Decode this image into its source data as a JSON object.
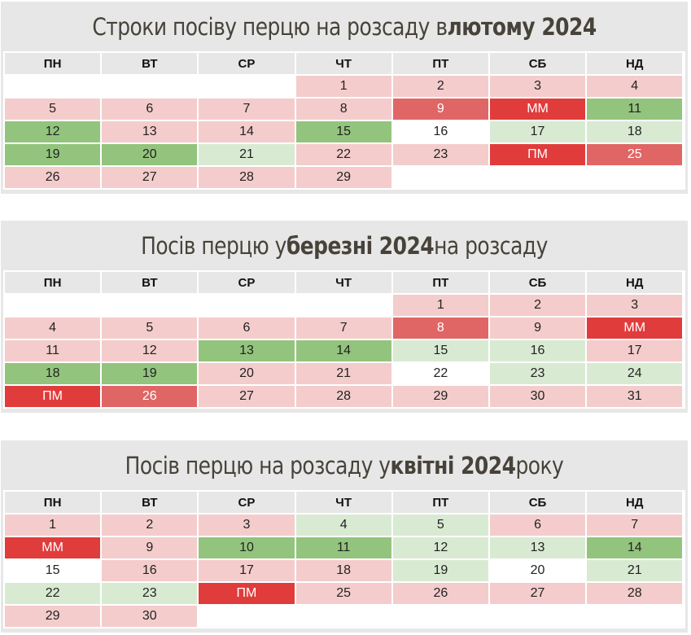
{
  "legend_colors": {
    "pink": "#f4cccc",
    "red": "#e06666",
    "strong": "#e03c3c",
    "green": "#93c47d",
    "lgreen": "#d9ead3",
    "white": "#ffffff"
  },
  "weekdays": [
    "ПН",
    "ВТ",
    "СР",
    "ЧТ",
    "ПТ",
    "СБ",
    "НД"
  ],
  "calendars": [
    {
      "title_parts": [
        {
          "text": "Строки посіву перцю на розсаду в ",
          "bold": false
        },
        {
          "text": "лютому 2024",
          "bold": true
        }
      ],
      "cells": [
        {
          "label": "",
          "type": "empty"
        },
        {
          "label": "",
          "type": "empty"
        },
        {
          "label": "",
          "type": "empty"
        },
        {
          "label": "1",
          "type": "pink"
        },
        {
          "label": "2",
          "type": "pink"
        },
        {
          "label": "3",
          "type": "pink"
        },
        {
          "label": "4",
          "type": "pink"
        },
        {
          "label": "5",
          "type": "pink"
        },
        {
          "label": "6",
          "type": "pink"
        },
        {
          "label": "7",
          "type": "pink"
        },
        {
          "label": "8",
          "type": "pink"
        },
        {
          "label": "9",
          "type": "red"
        },
        {
          "label": "ММ",
          "type": "strong"
        },
        {
          "label": "11",
          "type": "green"
        },
        {
          "label": "12",
          "type": "green"
        },
        {
          "label": "13",
          "type": "pink"
        },
        {
          "label": "14",
          "type": "pink"
        },
        {
          "label": "15",
          "type": "green"
        },
        {
          "label": "16",
          "type": "white"
        },
        {
          "label": "17",
          "type": "lgreen"
        },
        {
          "label": "18",
          "type": "lgreen"
        },
        {
          "label": "19",
          "type": "green"
        },
        {
          "label": "20",
          "type": "green"
        },
        {
          "label": "21",
          "type": "lgreen"
        },
        {
          "label": "22",
          "type": "pink"
        },
        {
          "label": "23",
          "type": "pink"
        },
        {
          "label": "ПМ",
          "type": "strong"
        },
        {
          "label": "25",
          "type": "red"
        },
        {
          "label": "26",
          "type": "pink"
        },
        {
          "label": "27",
          "type": "pink"
        },
        {
          "label": "28",
          "type": "pink"
        },
        {
          "label": "29",
          "type": "pink"
        },
        {
          "label": "",
          "type": "empty"
        },
        {
          "label": "",
          "type": "empty"
        },
        {
          "label": "",
          "type": "empty"
        }
      ]
    },
    {
      "title_parts": [
        {
          "text": "Посів перцю у ",
          "bold": false
        },
        {
          "text": "березні 2024",
          "bold": true
        },
        {
          "text": " на розсаду",
          "bold": false
        }
      ],
      "cells": [
        {
          "label": "",
          "type": "empty"
        },
        {
          "label": "",
          "type": "empty"
        },
        {
          "label": "",
          "type": "empty"
        },
        {
          "label": "",
          "type": "empty"
        },
        {
          "label": "1",
          "type": "pink"
        },
        {
          "label": "2",
          "type": "pink"
        },
        {
          "label": "3",
          "type": "pink"
        },
        {
          "label": "4",
          "type": "pink"
        },
        {
          "label": "5",
          "type": "pink"
        },
        {
          "label": "6",
          "type": "pink"
        },
        {
          "label": "7",
          "type": "pink"
        },
        {
          "label": "8",
          "type": "red"
        },
        {
          "label": "9",
          "type": "pink"
        },
        {
          "label": "ММ",
          "type": "strong"
        },
        {
          "label": "11",
          "type": "pink"
        },
        {
          "label": "12",
          "type": "pink"
        },
        {
          "label": "13",
          "type": "green"
        },
        {
          "label": "14",
          "type": "green"
        },
        {
          "label": "15",
          "type": "lgreen"
        },
        {
          "label": "16",
          "type": "lgreen"
        },
        {
          "label": "17",
          "type": "pink"
        },
        {
          "label": "18",
          "type": "green"
        },
        {
          "label": "19",
          "type": "green"
        },
        {
          "label": "20",
          "type": "pink"
        },
        {
          "label": "21",
          "type": "pink"
        },
        {
          "label": "22",
          "type": "white"
        },
        {
          "label": "23",
          "type": "lgreen"
        },
        {
          "label": "24",
          "type": "lgreen"
        },
        {
          "label": "ПМ",
          "type": "strong"
        },
        {
          "label": "26",
          "type": "red"
        },
        {
          "label": "27",
          "type": "pink"
        },
        {
          "label": "28",
          "type": "pink"
        },
        {
          "label": "29",
          "type": "pink"
        },
        {
          "label": "30",
          "type": "pink"
        },
        {
          "label": "31",
          "type": "pink"
        }
      ]
    },
    {
      "title_parts": [
        {
          "text": "Посів перцю на розсаду у ",
          "bold": false
        },
        {
          "text": "квітні 2024",
          "bold": true
        },
        {
          "text": " року",
          "bold": false
        }
      ],
      "cells": [
        {
          "label": "1",
          "type": "pink"
        },
        {
          "label": "2",
          "type": "pink"
        },
        {
          "label": "3",
          "type": "pink"
        },
        {
          "label": "4",
          "type": "lgreen"
        },
        {
          "label": "5",
          "type": "lgreen"
        },
        {
          "label": "6",
          "type": "pink"
        },
        {
          "label": "7",
          "type": "pink"
        },
        {
          "label": "ММ",
          "type": "strong"
        },
        {
          "label": "9",
          "type": "pink"
        },
        {
          "label": "10",
          "type": "green"
        },
        {
          "label": "11",
          "type": "green"
        },
        {
          "label": "12",
          "type": "lgreen"
        },
        {
          "label": "13",
          "type": "lgreen"
        },
        {
          "label": "14",
          "type": "green"
        },
        {
          "label": "15",
          "type": "white"
        },
        {
          "label": "16",
          "type": "pink"
        },
        {
          "label": "17",
          "type": "pink"
        },
        {
          "label": "18",
          "type": "pink"
        },
        {
          "label": "19",
          "type": "lgreen"
        },
        {
          "label": "20",
          "type": "white"
        },
        {
          "label": "21",
          "type": "lgreen"
        },
        {
          "label": "22",
          "type": "lgreen"
        },
        {
          "label": "23",
          "type": "lgreen"
        },
        {
          "label": "ПМ",
          "type": "strong"
        },
        {
          "label": "25",
          "type": "pink"
        },
        {
          "label": "26",
          "type": "pink"
        },
        {
          "label": "27",
          "type": "pink"
        },
        {
          "label": "28",
          "type": "pink"
        },
        {
          "label": "29",
          "type": "pink"
        },
        {
          "label": "30",
          "type": "pink"
        },
        {
          "label": "",
          "type": "empty"
        },
        {
          "label": "",
          "type": "empty"
        },
        {
          "label": "",
          "type": "empty"
        },
        {
          "label": "",
          "type": "empty"
        },
        {
          "label": "",
          "type": "empty"
        }
      ]
    }
  ]
}
